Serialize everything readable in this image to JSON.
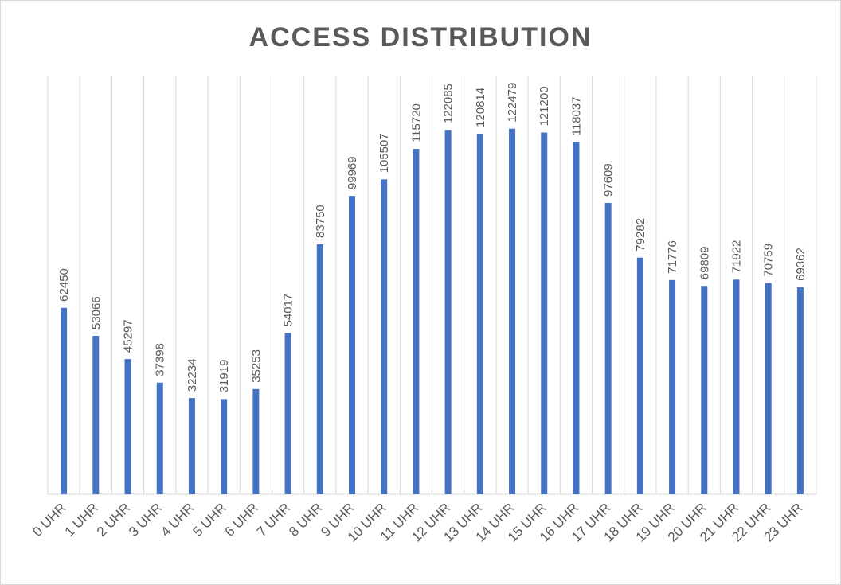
{
  "chart_data": {
    "type": "bar",
    "title": "ACCESS DISTRIBUTION",
    "xlabel": "",
    "ylabel": "",
    "categories": [
      "0 UHR",
      "1 UHR",
      "2 UHR",
      "3 UHR",
      "4 UHR",
      "5 UHR",
      "6 UHR",
      "7 UHR",
      "8 UHR",
      "9 UHR",
      "10 UHR",
      "11 UHR",
      "12 UHR",
      "13 UHR",
      "14 UHR",
      "15 UHR",
      "16 UHR",
      "17 UHR",
      "18 UHR",
      "19 UHR",
      "20 UHR",
      "21 UHR",
      "22 UHR",
      "23 UHR"
    ],
    "values": [
      62450,
      53066,
      45297,
      37398,
      32234,
      31919,
      35253,
      54017,
      83750,
      99969,
      105507,
      115720,
      122085,
      120814,
      122479,
      121200,
      118037,
      97609,
      79282,
      71776,
      69809,
      71922,
      70759,
      69362
    ],
    "ylim": [
      0,
      140000
    ],
    "grid": "vertical",
    "legend": "none",
    "bar_color": "#4472C4",
    "grid_color": "#d9d9d9",
    "text_color": "#595959"
  }
}
